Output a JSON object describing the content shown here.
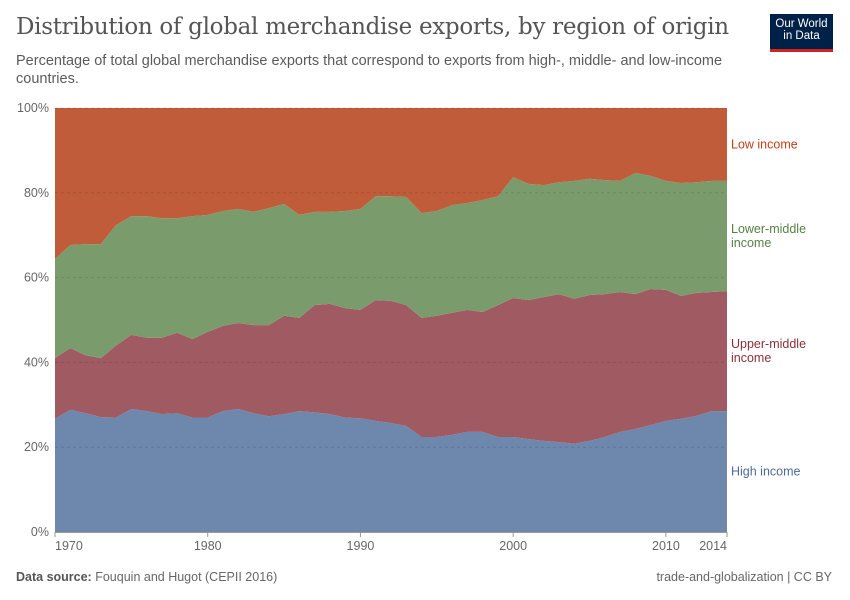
{
  "header": {
    "title": "Distribution of global merchandise exports, by region of origin",
    "subtitle": "Percentage of total global merchandise exports that correspond to exports from high-, middle- and low-income countries.",
    "logo_line1": "Our World",
    "logo_line2": "in Data"
  },
  "footer": {
    "source_label": "Data source:",
    "source": "Fouquin and Hugot (CEPII 2016)",
    "right": "trade-and-globalization | CC BY"
  },
  "chart_data": {
    "type": "area",
    "stacked": true,
    "relative": true,
    "x": [
      1970,
      1971,
      1972,
      1973,
      1974,
      1975,
      1976,
      1977,
      1978,
      1979,
      1980,
      1981,
      1982,
      1983,
      1984,
      1985,
      1986,
      1987,
      1988,
      1989,
      1990,
      1991,
      1992,
      1993,
      1994,
      1995,
      1996,
      1997,
      1998,
      1999,
      2000,
      2001,
      2002,
      2003,
      2004,
      2005,
      2006,
      2007,
      2008,
      2009,
      2010,
      2011,
      2012,
      2013,
      2014
    ],
    "xticks": [
      "1970",
      "1980",
      "1990",
      "2000",
      "2010",
      "2014"
    ],
    "yticks": [
      "0%",
      "20%",
      "40%",
      "60%",
      "80%",
      "100%"
    ],
    "ylim": [
      0,
      100
    ],
    "grid": "horizontal dashed",
    "legend": "right, inline labels",
    "series": [
      {
        "name": "High income",
        "color": "#6d87ad",
        "label_color": "#4c6a9c",
        "label": [
          "High income"
        ],
        "values": [
          26.7,
          28.8,
          28,
          27.1,
          27,
          29,
          28.5,
          27.8,
          28,
          27,
          27,
          28.5,
          29,
          28,
          27.3,
          27.8,
          28.5,
          28.2,
          27.8,
          27,
          26.8,
          26.2,
          25.7,
          25,
          22.4,
          22.4,
          22.9,
          23.6,
          23.6,
          22.4,
          22.4,
          21.9,
          21.5,
          21.2,
          20.8,
          21.5,
          22.4,
          23.6,
          24.3,
          25.2,
          26.2,
          26.7,
          27.4,
          28.5,
          28.5
        ]
      },
      {
        "name": "Upper-middle income",
        "color": "#a05a61",
        "label_color": "#883039",
        "label": [
          "Upper-middle",
          "income"
        ],
        "values": [
          14.3,
          14.6,
          13.7,
          13.9,
          17,
          17.5,
          17.3,
          18,
          19,
          18.5,
          20.2,
          20.1,
          20.3,
          20.8,
          21.5,
          23.2,
          22,
          25.3,
          26,
          25.8,
          25.6,
          28.5,
          28.8,
          28.5,
          28.1,
          28.6,
          28.8,
          28.8,
          28.3,
          31.1,
          32.8,
          32.8,
          33.9,
          34.9,
          34.2,
          34.4,
          33.7,
          33,
          31.8,
          32.1,
          30.9,
          29,
          29,
          28.1,
          28.3
        ]
      },
      {
        "name": "Lower-middle income",
        "color": "#7a9c6c",
        "label_color": "#578145",
        "label": [
          "Lower-middle",
          "income"
        ],
        "values": [
          23.4,
          24.3,
          26.2,
          26.9,
          28.4,
          28,
          28.7,
          28.2,
          27,
          29,
          27.6,
          27.1,
          26.9,
          26.7,
          27.6,
          26.4,
          24.3,
          22,
          21.7,
          22.9,
          23.8,
          24.5,
          24.7,
          25.5,
          24.7,
          24.7,
          25.4,
          25.2,
          26.4,
          25.7,
          28.5,
          27.4,
          26.4,
          26.4,
          27.8,
          27.4,
          26.9,
          26.2,
          28.6,
          26.7,
          25.7,
          26.6,
          26.1,
          26.2,
          26
        ]
      },
      {
        "name": "Low income",
        "color": "#c05c39",
        "label_color": "#c1401a",
        "label": [
          "Low income"
        ],
        "values": [
          35.6,
          32.3,
          32.1,
          32.1,
          27.6,
          25.5,
          25.5,
          26,
          26,
          25.5,
          25.2,
          24.3,
          23.8,
          24.5,
          23.6,
          22.6,
          25.2,
          24.5,
          24.5,
          24.3,
          23.8,
          20.8,
          20.8,
          21,
          24.8,
          24.3,
          22.9,
          22.4,
          21.7,
          20.8,
          16.3,
          17.9,
          18.2,
          17.5,
          17.2,
          16.7,
          17,
          17.2,
          15.3,
          16,
          17.2,
          17.7,
          17.5,
          17.2,
          17.2
        ]
      }
    ]
  }
}
